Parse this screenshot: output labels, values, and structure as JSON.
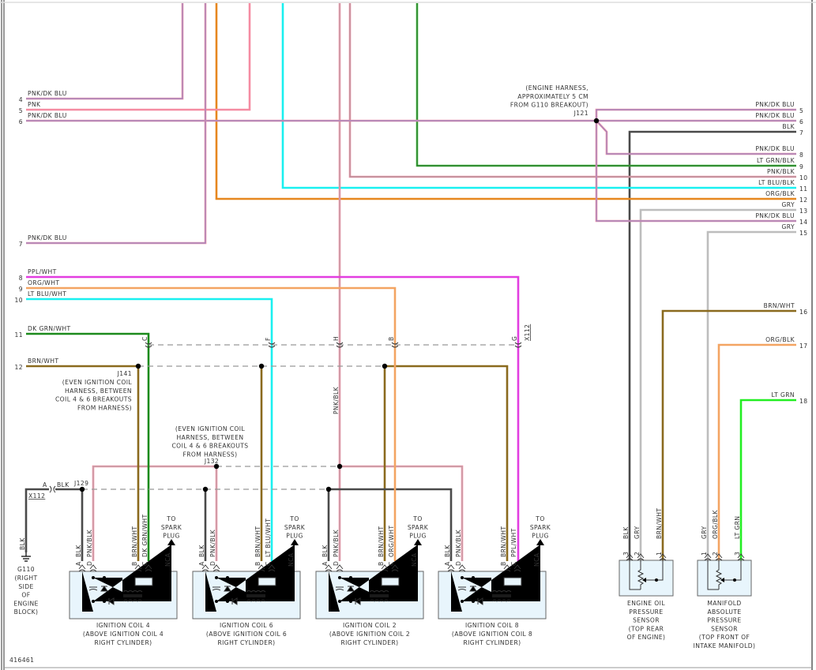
{
  "diagram_id": "416461",
  "colors": {
    "pnk": "#f58ca2",
    "dk_blu": "#7b86cc",
    "blk": "#4a4a4a",
    "gry": "#bdbdbd",
    "org": "#e6871f",
    "org_lt": "#f3a462",
    "lt_blu": "#19f0f0",
    "ppl": "#e23ee0",
    "dk_grn": "#1c8a1c",
    "lt_grn": "#22ee22",
    "lt_grn_blk": "#3cc23c",
    "brn": "#8a6a1e",
    "box_fill": "#e8f5fc",
    "box_stroke": "#666666"
  },
  "left_circuits": [
    {
      "num": "4",
      "label": "PNK/DK BLU"
    },
    {
      "num": "5",
      "label": "PNK"
    },
    {
      "num": "6",
      "label": "PNK/DK BLU"
    },
    {
      "num": "7",
      "label": "PNK/DK BLU"
    },
    {
      "num": "8",
      "label": "PPL/WHT"
    },
    {
      "num": "9",
      "label": "ORG/WHT"
    },
    {
      "num": "10",
      "label": "LT BLU/WHT"
    },
    {
      "num": "11",
      "label": "DK GRN/WHT"
    },
    {
      "num": "12",
      "label": "BRN/WHT"
    }
  ],
  "right_circuits": [
    {
      "num": "5",
      "label": "PNK/DK BLU"
    },
    {
      "num": "6",
      "label": "PNK/DK BLU"
    },
    {
      "num": "7",
      "label": "BLK"
    },
    {
      "num": "8",
      "label": "PNK/DK BLU"
    },
    {
      "num": "9",
      "label": "LT GRN/BLK"
    },
    {
      "num": "10",
      "label": "PNK/BLK"
    },
    {
      "num": "11",
      "label": "LT BLU/BLK"
    },
    {
      "num": "12",
      "label": "ORG/BLK"
    },
    {
      "num": "13",
      "label": "GRY"
    },
    {
      "num": "14",
      "label": "PNK/DK BLU"
    },
    {
      "num": "15",
      "label": "GRY"
    },
    {
      "num": "16",
      "label": "BRN/WHT"
    },
    {
      "num": "17",
      "label": "ORG/BLK"
    },
    {
      "num": "18",
      "label": "LT GRN"
    }
  ],
  "splices": {
    "j121": {
      "name": "J121",
      "note": [
        "(ENGINE HARNESS,",
        "APPROXIMATELY 5 CM",
        "FROM G110 BREAKOUT)"
      ]
    },
    "j141": {
      "name": "J141",
      "note": [
        "(EVEN IGNITION COIL",
        "HARNESS, BETWEEN",
        "COIL 4 & 6 BREAKOUTS",
        "FROM HARNESS)"
      ]
    },
    "j132": {
      "name": "J132",
      "note": [
        "(EVEN IGNITION COIL",
        "HARNESS, BETWEEN",
        "COIL 4 & 6 BREAKOUTS",
        "FROM HARNESS)"
      ]
    },
    "j129": {
      "name": "J129"
    }
  },
  "connector_x112": {
    "name": "X112",
    "pins": [
      "C",
      "F",
      "H",
      "B",
      "G"
    ],
    "ground_pin": "A",
    "ground_wire": "BLK"
  },
  "inline_labels": {
    "pnk_blk": "PNK/BLK"
  },
  "ground": {
    "wire": "BLK",
    "name": "G110",
    "note": [
      "(RIGHT",
      "SIDE",
      "OF",
      "ENGINE",
      "BLOCK)"
    ]
  },
  "coils": [
    {
      "title": "IGNITION COIL 4",
      "loc": [
        "(ABOVE IGNITION COIL 4",
        "RIGHT CYLINDER)"
      ],
      "pins": [
        {
          "pin": "A",
          "wire": "BLK"
        },
        {
          "pin": "D",
          "wire": "PNK/BLK"
        },
        {
          "pin": "B",
          "wire": "BRN/WHT"
        },
        {
          "pin": "C",
          "wire": "DK GRN/WHT"
        }
      ],
      "output": "NCA",
      "to": [
        "TO",
        "SPARK",
        "PLUG"
      ]
    },
    {
      "title": "IGNITION COIL 6",
      "loc": [
        "(ABOVE IGNITION COIL 6",
        "RIGHT CYLINDER)"
      ],
      "pins": [
        {
          "pin": "A",
          "wire": "BLK"
        },
        {
          "pin": "D",
          "wire": "PNK/BLK"
        },
        {
          "pin": "B",
          "wire": "BRN/WHT"
        },
        {
          "pin": "C",
          "wire": "LT BLU/WHT"
        }
      ],
      "output": "NCA",
      "to": [
        "TO",
        "SPARK",
        "PLUG"
      ]
    },
    {
      "title": "IGNITION COIL 2",
      "loc": [
        "(ABOVE IGNITION COIL 2",
        "RIGHT CYLINDER)"
      ],
      "pins": [
        {
          "pin": "A",
          "wire": "BLK"
        },
        {
          "pin": "D",
          "wire": "PNK/BLK"
        },
        {
          "pin": "B",
          "wire": "BRN/WHT"
        },
        {
          "pin": "C",
          "wire": "ORG/WHT"
        }
      ],
      "output": "NCA",
      "to": [
        "TO",
        "SPARK",
        "PLUG"
      ]
    },
    {
      "title": "IGNITION COIL 8",
      "loc": [
        "(ABOVE IGNITION COIL 8",
        "RIGHT CYLINDER)"
      ],
      "pins": [
        {
          "pin": "A",
          "wire": "BLK"
        },
        {
          "pin": "D",
          "wire": "PNK/BLK"
        },
        {
          "pin": "B",
          "wire": "BRN/WHT"
        },
        {
          "pin": "C",
          "wire": "PPL/WHT"
        }
      ],
      "output": "NCA",
      "to": [
        "TO",
        "SPARK",
        "PLUG"
      ]
    }
  ],
  "sensors": [
    {
      "title": [
        "ENGINE OIL",
        "PRESSURE",
        "SENSOR",
        "(TOP REAR",
        "OF ENGINE)"
      ],
      "pins": [
        {
          "pin": "3",
          "wire": "BLK"
        },
        {
          "pin": "2",
          "wire": "GRY"
        },
        {
          "pin": "1",
          "wire": "BRN/WHT"
        }
      ]
    },
    {
      "title": [
        "MANIFOLD",
        "ABSOLUTE",
        "PRESSURE",
        "SENSOR",
        "(TOP FRONT OF",
        "INTAKE MANIFOLD)"
      ],
      "pins": [
        {
          "pin": "1",
          "wire": "GRY"
        },
        {
          "pin": "2",
          "wire": "ORG/BLK"
        },
        {
          "pin": "3",
          "wire": "LT GRN"
        }
      ]
    }
  ]
}
